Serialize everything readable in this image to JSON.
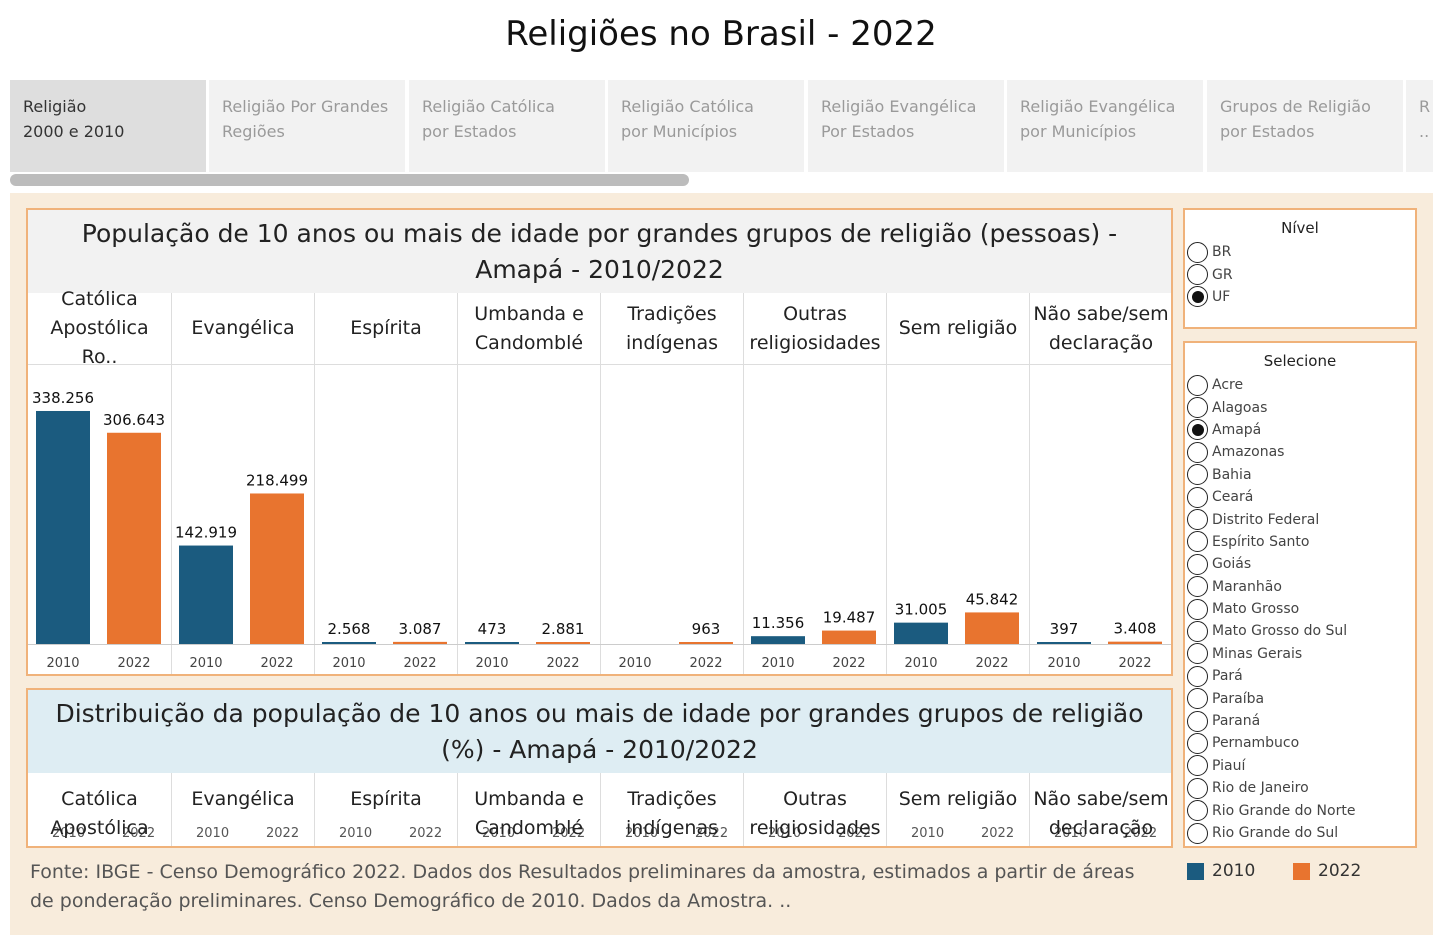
{
  "page_title": "Religiões no Brasil - 2022",
  "tabs": [
    {
      "line1": "Religião",
      "line2": "2000 e 2010",
      "active": true
    },
    {
      "line1": "Religião Por Grandes",
      "line2": "Regiões",
      "active": false
    },
    {
      "line1": "Religião Católica",
      "line2": "por Estados",
      "active": false
    },
    {
      "line1": "Religião Católica",
      "line2": "por Municípios",
      "active": false
    },
    {
      "line1": "Religião Evangélica",
      "line2": "Por Estados",
      "active": false
    },
    {
      "line1": "Religião Evangélica",
      "line2": "por Municípios",
      "active": false
    },
    {
      "line1": "Grupos de Religião",
      "line2": "por Estados",
      "active": false
    },
    {
      "line1": "R",
      "line2": "..",
      "active": false
    }
  ],
  "population_panel": {
    "title": "População de 10 anos ou mais de idade por grandes grupos de religião (pessoas) - Amapá - 2010/2022"
  },
  "distribution_panel": {
    "title": "Distribuição da população de 10 anos ou mais de idade por grandes grupos de religião (%) - Amapá - 2010/2022"
  },
  "categories": [
    {
      "line1": "Católica",
      "line2": "Apostólica Ro.."
    },
    {
      "line1": "Evangélica",
      "line2": ""
    },
    {
      "line1": "Espírita",
      "line2": ""
    },
    {
      "line1": "Umbanda e",
      "line2": "Candomblé"
    },
    {
      "line1": "Tradições",
      "line2": "indígenas"
    },
    {
      "line1": "Outras",
      "line2": "religiosidades"
    },
    {
      "line1": "Sem religião",
      "line2": ""
    },
    {
      "line1": "Não sabe/sem",
      "line2": "declaração"
    }
  ],
  "distribution_categories": [
    "Católica Apostólica",
    "Evangélica",
    "Espírita",
    "Umbanda e Candomblé",
    "Tradições indígenas",
    "Outras religiosidades",
    "Sem religião",
    "Não sabe/sem declaração"
  ],
  "chart_data": {
    "type": "bar",
    "categories": [
      "Católica Apostólica Ro..",
      "Evangélica",
      "Espírita",
      "Umbanda e Candomblé",
      "Tradições indígenas",
      "Outras religiosidades",
      "Sem religião",
      "Não sabe/sem declaração"
    ],
    "x_ticks": [
      "2010",
      "2022"
    ],
    "series": [
      {
        "name": "2010",
        "color": "#1b5b7f",
        "values": [
          338256,
          142919,
          2568,
          473,
          null,
          11356,
          31005,
          397
        ],
        "labels": [
          "338.256",
          "142.919",
          "2.568",
          "473",
          "",
          "11.356",
          "31.005",
          "397"
        ]
      },
      {
        "name": "2022",
        "color": "#e8742f",
        "values": [
          306643,
          218499,
          3087,
          2881,
          963,
          19487,
          45842,
          3408
        ],
        "labels": [
          "306.643",
          "218.499",
          "3.087",
          "2.881",
          "963",
          "19.487",
          "45.842",
          "3.408"
        ]
      }
    ],
    "ylim": [
      0,
      360000
    ]
  },
  "source_note": "Fonte: IBGE - Censo Demográfico 2022. Dados dos Resultados preliminares da amostra, estimados a partir de áreas de ponderação preliminares. Censo Demográfico de 2010. Dados da Amostra. ..",
  "nivel": {
    "title": "Nível",
    "options": [
      {
        "label": "BR",
        "selected": false
      },
      {
        "label": "GR",
        "selected": false
      },
      {
        "label": "UF",
        "selected": true
      }
    ]
  },
  "selecione": {
    "title": "Selecione",
    "options": [
      {
        "label": "Acre",
        "selected": false
      },
      {
        "label": "Alagoas",
        "selected": false
      },
      {
        "label": "Amapá",
        "selected": true
      },
      {
        "label": "Amazonas",
        "selected": false
      },
      {
        "label": "Bahia",
        "selected": false
      },
      {
        "label": "Ceará",
        "selected": false
      },
      {
        "label": "Distrito Federal",
        "selected": false
      },
      {
        "label": "Espírito Santo",
        "selected": false
      },
      {
        "label": "Goiás",
        "selected": false
      },
      {
        "label": "Maranhão",
        "selected": false
      },
      {
        "label": "Mato Grosso",
        "selected": false
      },
      {
        "label": "Mato Grosso do Sul",
        "selected": false
      },
      {
        "label": "Minas Gerais",
        "selected": false
      },
      {
        "label": "Pará",
        "selected": false
      },
      {
        "label": "Paraíba",
        "selected": false
      },
      {
        "label": "Paraná",
        "selected": false
      },
      {
        "label": "Pernambuco",
        "selected": false
      },
      {
        "label": "Piauí",
        "selected": false
      },
      {
        "label": "Rio de Janeiro",
        "selected": false
      },
      {
        "label": "Rio Grande do Norte",
        "selected": false
      },
      {
        "label": "Rio Grande do Sul",
        "selected": false
      }
    ]
  },
  "legend": [
    {
      "label": "2010",
      "color": "#1b5b7f"
    },
    {
      "label": "2022",
      "color": "#e8742f"
    }
  ]
}
